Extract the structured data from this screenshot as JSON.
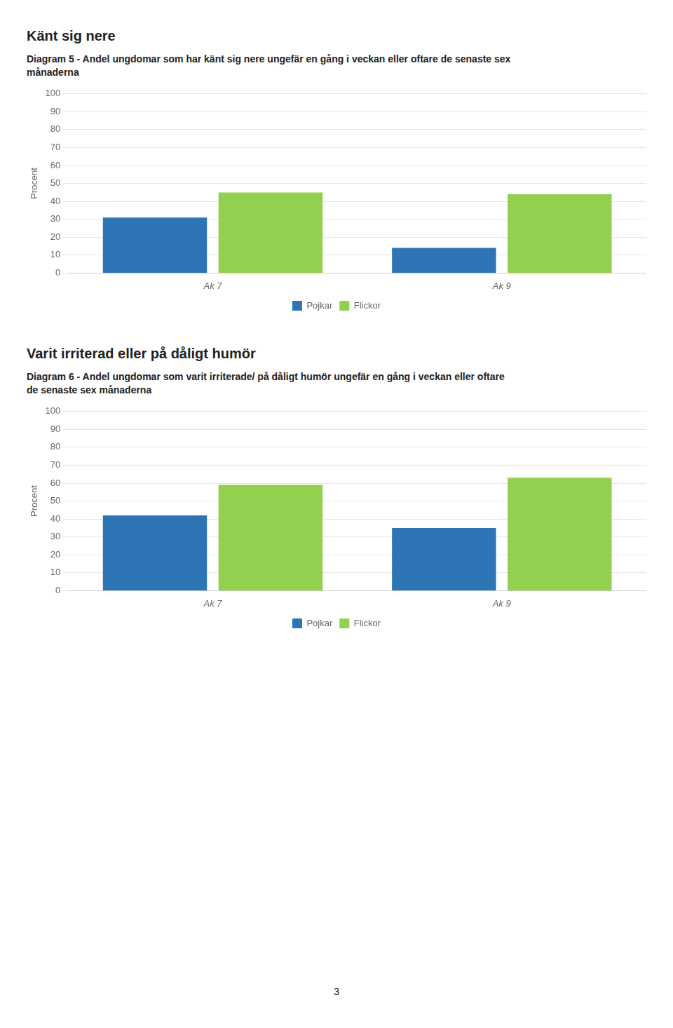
{
  "chart_data": [
    {
      "type": "bar",
      "title": "Känt sig nere",
      "subtitle": "Diagram 5 - Andel ungdomar som har känt sig nere ungefär en gång i veckan eller oftare de senaste sex\nmånaderna",
      "categories": [
        "Ak 7",
        "Ak 9"
      ],
      "series": [
        {
          "name": "Pojkar",
          "color": "#2E75B6",
          "values": [
            31,
            14
          ]
        },
        {
          "name": "Flickor",
          "color": "#92D050",
          "values": [
            45,
            44
          ]
        }
      ],
      "ylabel": "Procent",
      "ylim": [
        0,
        100
      ],
      "yticks": [
        0,
        10,
        20,
        30,
        40,
        50,
        60,
        70,
        80,
        90,
        100
      ],
      "grid": true,
      "legend": "bottom"
    },
    {
      "type": "bar",
      "title": "Varit irriterad eller på dåligt humör",
      "subtitle": "Diagram 6 - Andel ungdomar som varit irriterade/ på dåligt humör ungefär en gång i veckan eller oftare\nde senaste sex månaderna",
      "categories": [
        "Ak 7",
        "Ak 9"
      ],
      "series": [
        {
          "name": "Pojkar",
          "color": "#2E75B6",
          "values": [
            42,
            35
          ]
        },
        {
          "name": "Flickor",
          "color": "#92D050",
          "values": [
            59,
            63
          ]
        }
      ],
      "ylabel": "Procent",
      "ylim": [
        0,
        100
      ],
      "yticks": [
        0,
        10,
        20,
        30,
        40,
        50,
        60,
        70,
        80,
        90,
        100
      ],
      "grid": true,
      "legend": "bottom"
    }
  ],
  "page_number": "3"
}
